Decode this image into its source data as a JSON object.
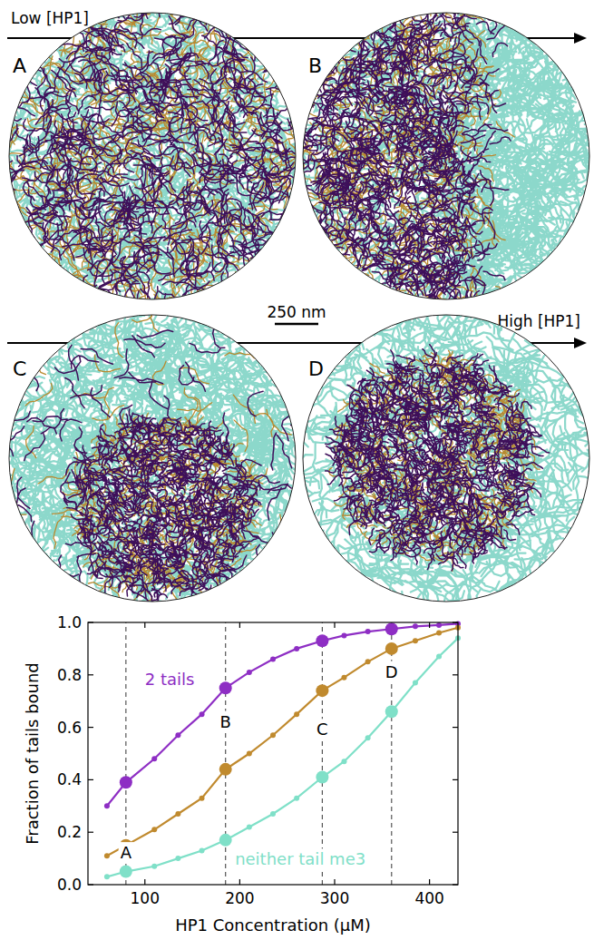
{
  "panels": {
    "letters": [
      "A",
      "B",
      "C",
      "D"
    ],
    "low_label": "Low [HP1]",
    "high_label": "High [HP1]",
    "scale_bar": "250 nm"
  },
  "chart_data": {
    "type": "line",
    "xlabel": "HP1 Concentration (μM)",
    "ylabel": "Fraction of tails bound",
    "x": [
      60,
      80,
      110,
      135,
      160,
      185,
      210,
      235,
      260,
      287,
      310,
      335,
      360,
      385,
      410,
      430
    ],
    "series": [
      {
        "name": "2 tails",
        "color": "#8e2ec4",
        "values": [
          0.3,
          0.39,
          0.48,
          0.57,
          0.65,
          0.75,
          0.81,
          0.86,
          0.9,
          0.93,
          0.95,
          0.965,
          0.975,
          0.985,
          0.99,
          0.995
        ]
      },
      {
        "color": "#c08a2e",
        "values": [
          0.11,
          0.15,
          0.21,
          0.27,
          0.33,
          0.44,
          0.5,
          0.57,
          0.65,
          0.74,
          0.79,
          0.85,
          0.9,
          0.93,
          0.96,
          0.98
        ]
      },
      {
        "name": "neither tail me3",
        "color": "#7fe0c8",
        "values": [
          0.03,
          0.05,
          0.07,
          0.1,
          0.13,
          0.17,
          0.22,
          0.27,
          0.33,
          0.41,
          0.47,
          0.56,
          0.66,
          0.77,
          0.87,
          0.94
        ]
      }
    ],
    "annotations": [
      {
        "text": "A",
        "x": 80,
        "y": 0.1
      },
      {
        "text": "B",
        "x": 185,
        "y": 0.6
      },
      {
        "text": "C",
        "x": 287,
        "y": 0.57
      },
      {
        "text": "D",
        "x": 360,
        "y": 0.79
      }
    ],
    "marker": "circle",
    "line_style": "solid",
    "grid": false,
    "xlim": [
      40,
      430
    ],
    "ylim": [
      0,
      1
    ],
    "xticks": [
      100,
      200,
      300,
      400
    ],
    "yticks": [
      {
        "value": 0,
        "label": "0.0"
      },
      {
        "value": 0.2,
        "label": "0.2"
      },
      {
        "value": 0.4,
        "label": "0.4"
      },
      {
        "value": 0.6,
        "label": "0.6"
      },
      {
        "value": 0.8,
        "label": "0.8"
      },
      {
        "value": 1,
        "label": "1.0"
      }
    ]
  }
}
